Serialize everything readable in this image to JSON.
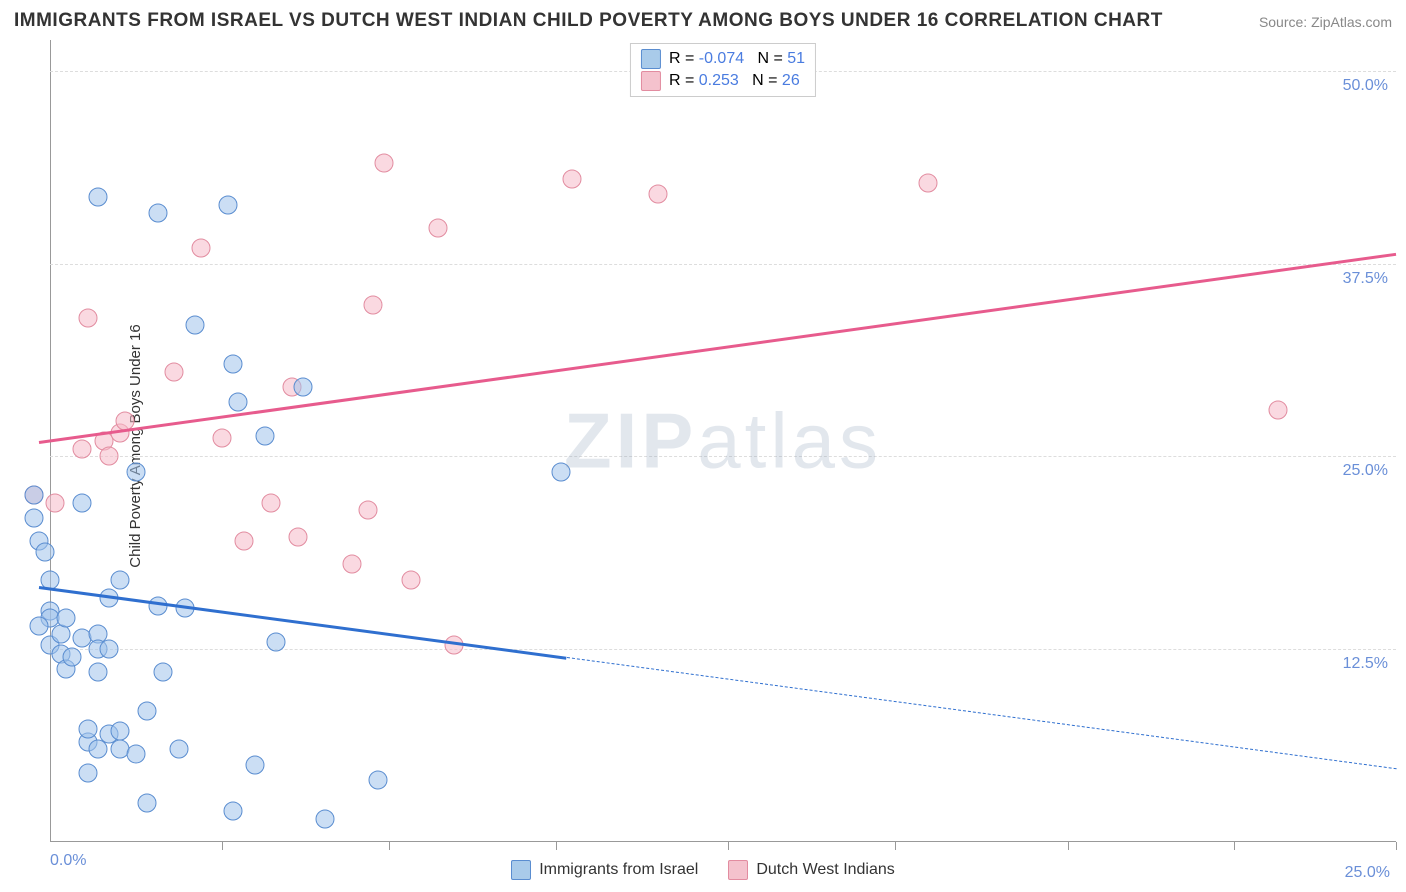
{
  "title": "IMMIGRANTS FROM ISRAEL VS DUTCH WEST INDIAN CHILD POVERTY AMONG BOYS UNDER 16 CORRELATION CHART",
  "source": "Source: ZipAtlas.com",
  "watermark_a": "ZIP",
  "watermark_b": "atlas",
  "ylabel": "Child Poverty Among Boys Under 16",
  "chart": {
    "type": "scatter",
    "background_color": "#ffffff",
    "grid_color": "#dddddd",
    "axis_color": "#999999",
    "xlim": [
      0,
      25
    ],
    "ylim": [
      0,
      52
    ],
    "y_gridlines": [
      12.5,
      25.0,
      37.5,
      50.0
    ],
    "y_tick_labels": [
      "12.5%",
      "25.0%",
      "37.5%",
      "50.0%"
    ],
    "x_ticks": [
      3.2,
      6.3,
      9.4,
      12.6,
      15.7,
      18.9,
      22.0,
      25.0
    ],
    "x_axis_start_label": "0.0%",
    "x_axis_end_label": "25.0%",
    "y_tick_label_color": "#6a8fd8",
    "x_tick_label_color": "#6a8fd8",
    "marker_radius": 8.5,
    "marker_border_width": 1.2,
    "label_fontsize": 15,
    "tick_fontsize": 16,
    "series": {
      "blue": {
        "name": "Immigrants from Israel",
        "fill": "rgba(160,195,235,0.55)",
        "stroke": "#5a8dd0",
        "swatch_fill": "#a9cbea",
        "swatch_stroke": "#5a8dd0",
        "R": "-0.074",
        "N": "51",
        "trend": {
          "color": "#2f6fcf",
          "width": 3,
          "start": [
            -0.2,
            16.6
          ],
          "end": [
            25.0,
            4.8
          ],
          "solid_end_x": 9.6
        },
        "points": [
          [
            -0.3,
            22.5
          ],
          [
            -0.3,
            21.0
          ],
          [
            -0.2,
            19.5
          ],
          [
            -0.1,
            18.8
          ],
          [
            0.0,
            17.0
          ],
          [
            0.0,
            15.0
          ],
          [
            0.0,
            14.5
          ],
          [
            -0.2,
            14.0
          ],
          [
            0.0,
            12.8
          ],
          [
            0.2,
            13.5
          ],
          [
            0.2,
            12.2
          ],
          [
            0.3,
            11.2
          ],
          [
            0.3,
            14.5
          ],
          [
            0.4,
            12.0
          ],
          [
            0.6,
            13.2
          ],
          [
            0.6,
            22.0
          ],
          [
            0.7,
            4.5
          ],
          [
            0.7,
            6.5
          ],
          [
            0.7,
            7.3
          ],
          [
            0.9,
            6.0
          ],
          [
            0.9,
            11.0
          ],
          [
            0.9,
            13.5
          ],
          [
            0.9,
            12.5
          ],
          [
            0.9,
            41.8
          ],
          [
            1.1,
            7.0
          ],
          [
            1.1,
            15.8
          ],
          [
            1.1,
            12.5
          ],
          [
            1.3,
            6.0
          ],
          [
            1.3,
            7.2
          ],
          [
            1.3,
            17.0
          ],
          [
            1.6,
            5.7
          ],
          [
            1.6,
            24.0
          ],
          [
            1.8,
            8.5
          ],
          [
            1.8,
            2.5
          ],
          [
            2.0,
            40.8
          ],
          [
            2.0,
            15.3
          ],
          [
            2.1,
            11.0
          ],
          [
            2.4,
            6.0
          ],
          [
            2.5,
            15.2
          ],
          [
            2.7,
            33.5
          ],
          [
            3.3,
            41.3
          ],
          [
            3.4,
            2.0
          ],
          [
            3.4,
            31.0
          ],
          [
            3.5,
            28.5
          ],
          [
            3.8,
            5.0
          ],
          [
            4.0,
            26.3
          ],
          [
            4.2,
            13.0
          ],
          [
            4.7,
            29.5
          ],
          [
            5.1,
            1.5
          ],
          [
            6.1,
            4.0
          ],
          [
            9.5,
            24.0
          ]
        ]
      },
      "pink": {
        "name": "Dutch West Indians",
        "fill": "rgba(245,185,200,0.55)",
        "stroke": "#e28ca0",
        "swatch_fill": "#f4c2cd",
        "swatch_stroke": "#e28ca0",
        "R": "0.253",
        "N": "26",
        "trend": {
          "color": "#e75b8d",
          "width": 3,
          "start": [
            -0.2,
            26.0
          ],
          "end": [
            25.0,
            38.2
          ],
          "solid_end_x": 25.0
        },
        "points": [
          [
            -0.3,
            22.5
          ],
          [
            0.1,
            22.0
          ],
          [
            0.6,
            25.5
          ],
          [
            0.7,
            34.0
          ],
          [
            1.0,
            26.0
          ],
          [
            1.1,
            25.0
          ],
          [
            1.3,
            26.5
          ],
          [
            1.4,
            27.3
          ],
          [
            2.3,
            30.5
          ],
          [
            2.8,
            38.5
          ],
          [
            3.2,
            26.2
          ],
          [
            3.6,
            19.5
          ],
          [
            4.1,
            22.0
          ],
          [
            4.5,
            29.5
          ],
          [
            4.6,
            19.8
          ],
          [
            5.6,
            18.0
          ],
          [
            5.9,
            21.5
          ],
          [
            6.0,
            34.8
          ],
          [
            6.2,
            44.0
          ],
          [
            6.7,
            17.0
          ],
          [
            7.2,
            39.8
          ],
          [
            7.5,
            12.8
          ],
          [
            9.7,
            43.0
          ],
          [
            11.3,
            42.0
          ],
          [
            16.3,
            42.7
          ],
          [
            22.8,
            28.0
          ]
        ]
      }
    }
  },
  "legend_top": {
    "R_label": "R =",
    "N_label": "N =",
    "value_color": "#4a7ce0"
  },
  "legend_bottom": {
    "series_order": [
      "blue",
      "pink"
    ]
  }
}
